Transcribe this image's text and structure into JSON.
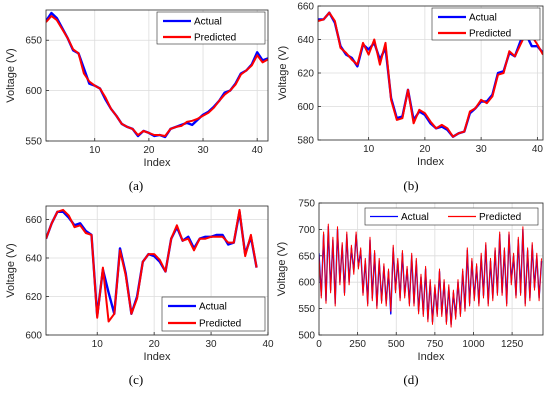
{
  "chart_data": [
    {
      "type": "line",
      "panel": "a",
      "caption": "(a)",
      "xlabel": "Index",
      "ylabel": "Voltage (V)",
      "xlim": [
        1,
        42
      ],
      "ylim": [
        550,
        680
      ],
      "xticks": [
        10,
        20,
        30,
        40
      ],
      "yticks": [
        550,
        600,
        650
      ],
      "grid": true,
      "legend": "top-right",
      "series": [
        {
          "name": "Actual",
          "color": "#0000ff",
          "x": [
            1,
            2,
            3,
            4,
            5,
            6,
            7,
            8,
            9,
            10,
            11,
            12,
            13,
            14,
            15,
            16,
            17,
            18,
            19,
            20,
            21,
            22,
            23,
            24,
            25,
            26,
            27,
            28,
            29,
            30,
            31,
            32,
            33,
            34,
            35,
            36,
            37,
            38,
            39,
            40,
            41,
            42
          ],
          "y": [
            669,
            677,
            672,
            662,
            652,
            640,
            637,
            622,
            607,
            605,
            602,
            591,
            582,
            575,
            567,
            564,
            562,
            555,
            560,
            558,
            555,
            556,
            554,
            562,
            564,
            566,
            568,
            566,
            571,
            576,
            579,
            584,
            590,
            598,
            600,
            607,
            617,
            620,
            626,
            638,
            630,
            632
          ]
        },
        {
          "name": "Predicted",
          "color": "#ff0000",
          "x": [
            1,
            2,
            3,
            4,
            5,
            6,
            7,
            8,
            9,
            10,
            11,
            12,
            13,
            14,
            15,
            16,
            17,
            18,
            19,
            20,
            21,
            22,
            23,
            24,
            25,
            26,
            27,
            28,
            29,
            30,
            31,
            32,
            33,
            34,
            35,
            36,
            37,
            38,
            39,
            40,
            41,
            42
          ],
          "y": [
            668,
            674,
            670,
            661,
            652,
            641,
            637,
            617,
            609,
            605,
            602,
            593,
            582,
            575,
            567,
            564,
            562,
            556,
            560,
            558,
            556,
            556,
            555,
            562,
            564,
            565,
            569,
            570,
            572,
            575,
            578,
            583,
            590,
            596,
            600,
            606,
            616,
            620,
            625,
            635,
            628,
            631
          ]
        }
      ]
    },
    {
      "type": "line",
      "panel": "b",
      "caption": "(b)",
      "xlabel": "Index",
      "ylabel": "Voltage (V)",
      "xlim": [
        1,
        41
      ],
      "ylim": [
        580,
        660
      ],
      "xticks": [
        10,
        20,
        30,
        40
      ],
      "yticks": [
        580,
        600,
        620,
        640,
        660
      ],
      "grid": true,
      "legend": "top-right",
      "series": [
        {
          "name": "Actual",
          "color": "#0000ff",
          "x": [
            1,
            2,
            3,
            4,
            5,
            6,
            7,
            8,
            9,
            10,
            11,
            12,
            13,
            14,
            15,
            16,
            17,
            18,
            19,
            20,
            21,
            22,
            23,
            24,
            25,
            26,
            27,
            28,
            29,
            30,
            31,
            32,
            33,
            34,
            35,
            36,
            37,
            38,
            39,
            40,
            41
          ],
          "y": [
            652,
            652,
            656,
            650,
            636,
            631,
            629,
            624,
            637,
            634,
            638,
            628,
            635,
            605,
            593,
            594,
            610,
            592,
            597,
            595,
            590,
            587,
            588,
            586,
            582,
            584,
            585,
            596,
            599,
            603,
            603,
            607,
            620,
            621,
            632,
            630,
            639,
            643,
            636,
            636,
            632
          ]
        },
        {
          "name": "Predicted",
          "color": "#ff0000",
          "x": [
            1,
            2,
            3,
            4,
            5,
            6,
            7,
            8,
            9,
            10,
            11,
            12,
            13,
            14,
            15,
            16,
            17,
            18,
            19,
            20,
            21,
            22,
            23,
            24,
            25,
            26,
            27,
            28,
            29,
            30,
            31,
            32,
            33,
            34,
            35,
            36,
            37,
            38,
            39,
            40,
            41
          ],
          "y": [
            651,
            652,
            656,
            651,
            635,
            632,
            628,
            625,
            638,
            631,
            640,
            625,
            638,
            604,
            592,
            593,
            610,
            590,
            598,
            596,
            591,
            587,
            589,
            587,
            582,
            584,
            585,
            597,
            599,
            604,
            602,
            606,
            619,
            620,
            633,
            630,
            637,
            644,
            642,
            637,
            631
          ]
        }
      ]
    },
    {
      "type": "line",
      "panel": "c",
      "caption": "(c)",
      "xlabel": "Index",
      "ylabel": "Voltage (V)",
      "xlim": [
        1,
        40
      ],
      "ylim": [
        600,
        667
      ],
      "xticks": [
        10,
        20,
        30,
        40
      ],
      "yticks": [
        600,
        620,
        640,
        660
      ],
      "grid": true,
      "legend": "bottom-right",
      "series": [
        {
          "name": "Actual",
          "color": "#0000ff",
          "x": [
            1,
            2,
            3,
            4,
            5,
            6,
            7,
            8,
            9,
            10,
            11,
            12,
            13,
            14,
            15,
            16,
            17,
            18,
            19,
            20,
            21,
            22,
            23,
            24,
            25,
            26,
            27,
            28,
            29,
            30,
            31,
            32,
            33,
            34,
            35,
            36,
            37,
            38
          ],
          "y": [
            650,
            658,
            664,
            664,
            661,
            657,
            658,
            654,
            652,
            610,
            634,
            622,
            611,
            645,
            632,
            611,
            620,
            638,
            642,
            641,
            638,
            633,
            650,
            656,
            649,
            651,
            645,
            650,
            651,
            651,
            652,
            652,
            647,
            648,
            664,
            642,
            651,
            635
          ]
        },
        {
          "name": "Predicted",
          "color": "#ff0000",
          "x": [
            1,
            2,
            3,
            4,
            5,
            6,
            7,
            8,
            9,
            10,
            11,
            12,
            13,
            14,
            15,
            16,
            17,
            18,
            19,
            20,
            21,
            22,
            23,
            24,
            25,
            26,
            27,
            28,
            29,
            30,
            31,
            32,
            33,
            34,
            35,
            36,
            37,
            38
          ],
          "y": [
            650,
            658,
            664,
            665,
            662,
            656,
            657,
            653,
            652,
            609,
            635,
            607,
            611,
            644,
            631,
            611,
            619,
            638,
            642,
            642,
            639,
            633,
            650,
            657,
            649,
            650,
            644,
            650,
            650,
            651,
            651,
            651,
            648,
            648,
            665,
            641,
            652,
            635
          ]
        }
      ]
    },
    {
      "type": "line",
      "panel": "d",
      "caption": "(d)",
      "xlabel": "Index",
      "ylabel": "Voltage (V)",
      "xlim": [
        0,
        1450
      ],
      "ylim": [
        500,
        750
      ],
      "xticks": [
        0,
        250,
        500,
        750,
        1000,
        1250
      ],
      "yticks": [
        500,
        550,
        600,
        650,
        700,
        750
      ],
      "grid": true,
      "legend": "top-center",
      "series": [
        {
          "name": "Actual",
          "color": "#0000ff",
          "x": [
            0,
            15,
            30,
            45,
            60,
            75,
            90,
            105,
            120,
            135,
            150,
            165,
            180,
            195,
            210,
            225,
            240,
            255,
            270,
            285,
            300,
            315,
            330,
            345,
            360,
            375,
            390,
            405,
            420,
            435,
            450,
            465,
            480,
            495,
            510,
            525,
            540,
            555,
            570,
            585,
            600,
            615,
            630,
            645,
            660,
            675,
            690,
            705,
            720,
            735,
            750,
            765,
            780,
            795,
            810,
            825,
            840,
            855,
            870,
            885,
            900,
            915,
            930,
            945,
            960,
            975,
            990,
            1005,
            1020,
            1035,
            1050,
            1065,
            1080,
            1095,
            1110,
            1125,
            1140,
            1155,
            1170,
            1185,
            1200,
            1215,
            1230,
            1245,
            1260,
            1275,
            1290,
            1305,
            1320,
            1335,
            1350,
            1365,
            1380,
            1395,
            1410,
            1425,
            1440
          ],
          "y": [
            655,
            575,
            690,
            565,
            705,
            585,
            680,
            560,
            700,
            600,
            670,
            580,
            690,
            600,
            665,
            620,
            690,
            630,
            660,
            580,
            640,
            560,
            680,
            570,
            655,
            555,
            640,
            565,
            630,
            560,
            620,
            540,
            665,
            585,
            640,
            570,
            655,
            575,
            625,
            560,
            650,
            560,
            640,
            545,
            610,
            540,
            625,
            530,
            600,
            525,
            590,
            540,
            620,
            540,
            600,
            525,
            590,
            520,
            580,
            535,
            600,
            540,
            620,
            550,
            660,
            560,
            640,
            570,
            630,
            560,
            650,
            575,
            670,
            560,
            640,
            570,
            660,
            580,
            690,
            580,
            660,
            560,
            690,
            600,
            650,
            575,
            680,
            580,
            700,
            560,
            660,
            570,
            670,
            590,
            650,
            570,
            640
          ]
        },
        {
          "name": "Predicted",
          "color": "#ff0000",
          "x": [
            0,
            15,
            30,
            45,
            60,
            75,
            90,
            105,
            120,
            135,
            150,
            165,
            180,
            195,
            210,
            225,
            240,
            255,
            270,
            285,
            300,
            315,
            330,
            345,
            360,
            375,
            390,
            405,
            420,
            435,
            450,
            465,
            480,
            495,
            510,
            525,
            540,
            555,
            570,
            585,
            600,
            615,
            630,
            645,
            660,
            675,
            690,
            705,
            720,
            735,
            750,
            765,
            780,
            795,
            810,
            825,
            840,
            855,
            870,
            885,
            900,
            915,
            930,
            945,
            960,
            975,
            990,
            1005,
            1020,
            1035,
            1050,
            1065,
            1080,
            1095,
            1110,
            1125,
            1140,
            1155,
            1170,
            1185,
            1200,
            1215,
            1230,
            1245,
            1260,
            1275,
            1290,
            1305,
            1320,
            1335,
            1350,
            1365,
            1380,
            1395,
            1410,
            1425,
            1440
          ],
          "y": [
            650,
            570,
            695,
            560,
            710,
            580,
            685,
            555,
            705,
            595,
            675,
            575,
            695,
            595,
            670,
            615,
            695,
            625,
            665,
            575,
            645,
            555,
            685,
            565,
            660,
            550,
            645,
            560,
            635,
            555,
            625,
            545,
            670,
            580,
            645,
            565,
            660,
            570,
            630,
            555,
            655,
            555,
            645,
            540,
            615,
            535,
            630,
            525,
            605,
            520,
            595,
            535,
            625,
            535,
            605,
            520,
            595,
            515,
            585,
            530,
            605,
            535,
            625,
            545,
            665,
            555,
            645,
            565,
            635,
            555,
            655,
            570,
            675,
            555,
            645,
            565,
            665,
            575,
            695,
            575,
            665,
            555,
            695,
            595,
            655,
            570,
            685,
            575,
            705,
            555,
            665,
            565,
            675,
            585,
            655,
            565,
            645
          ]
        }
      ]
    }
  ]
}
